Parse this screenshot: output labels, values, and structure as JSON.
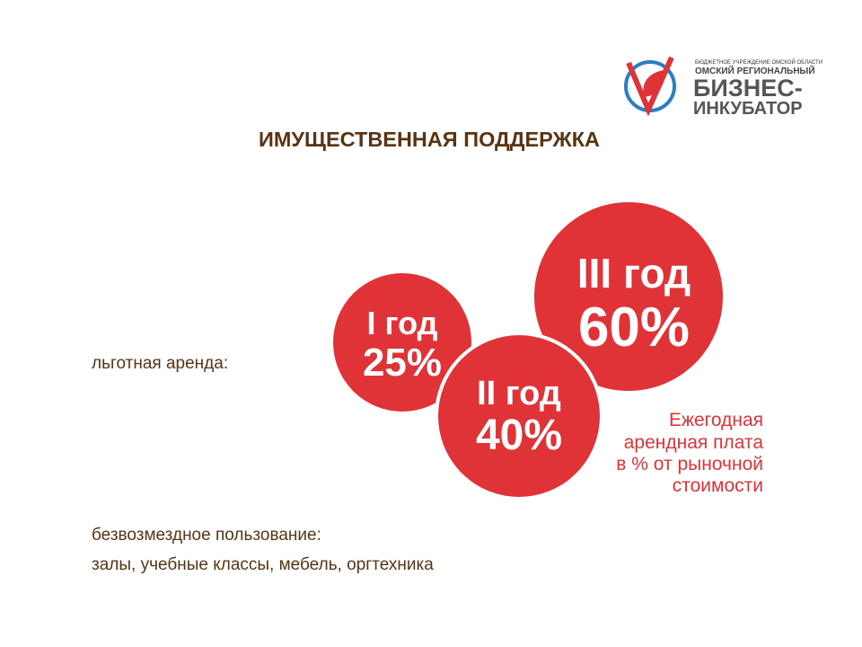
{
  "logo": {
    "org": "БЮДЖЕТНОЕ УЧРЕЖДЕНИЕ ОМСКОЙ ОБЛАСТИ",
    "line1": "ОМСКИЙ РЕГИОНАЛЬНЫЙ",
    "line2": "БИЗНЕС-",
    "line3": "ИНКУБАТОР"
  },
  "title": "ИМУЩЕСТВЕННАЯ ПОДДЕРЖКА",
  "rent_label": "льготная аренда:",
  "circles": [
    {
      "year": "I год",
      "rate": "25%"
    },
    {
      "year": "II год",
      "rate": "40%"
    },
    {
      "year": "III год",
      "rate": "60%"
    }
  ],
  "caption": [
    "Ежегодная",
    "арендная плата",
    "в % от рыночной",
    "стоимости"
  ],
  "free_use": {
    "label": "безвозмездное пользование:",
    "items": "залы, учебные классы, мебель, оргтехника"
  }
}
